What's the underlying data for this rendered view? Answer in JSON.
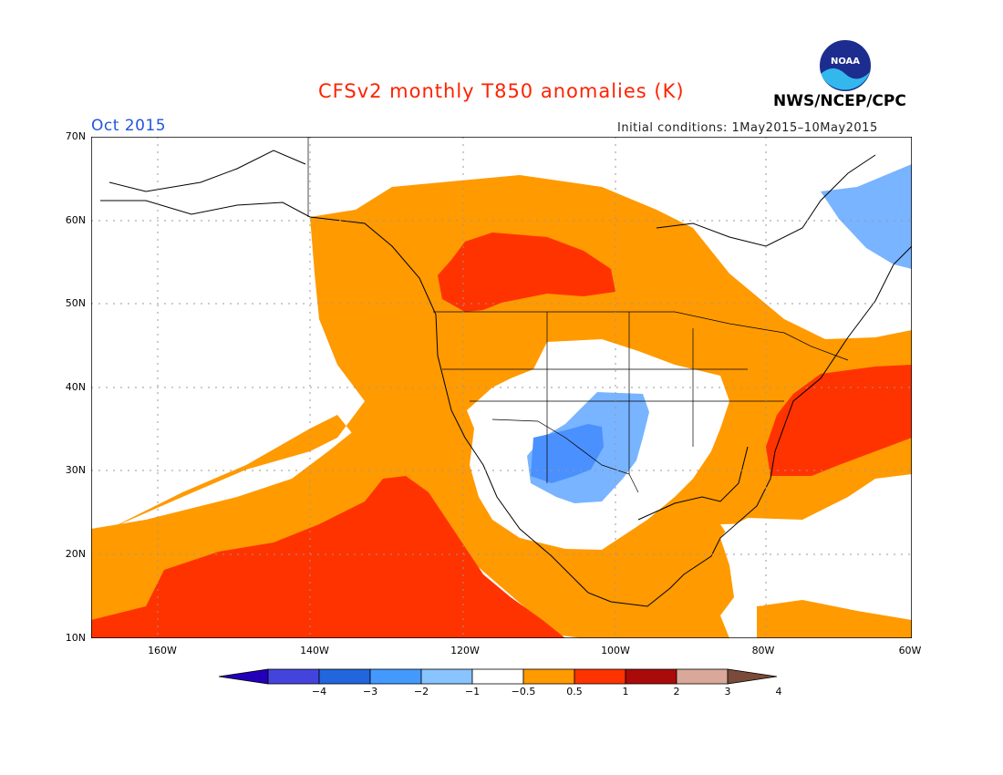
{
  "title": "CFSv2 monthly T850 anomalies (K)",
  "agency": "NWS/NCEP/CPC",
  "logo_text": "NOAA",
  "month": "Oct 2015",
  "initial_conditions": "Initial conditions: 1May2015–10May2015",
  "colors": {
    "title": "#ff2200",
    "month": "#2255dd",
    "white_band": "#ffffff",
    "warm_1": "#ff9a00",
    "warm_2": "#ff3300",
    "cool_1": "#78b4ff",
    "cool_2": "#4a90ff"
  },
  "map": {
    "lat_labels": [
      "70N",
      "60N",
      "50N",
      "40N",
      "30N",
      "20N",
      "10N"
    ],
    "lon_labels": [
      "160W",
      "140W",
      "120W",
      "100W",
      "80W",
      "60W"
    ]
  },
  "colorbar": {
    "labels": [
      "−4",
      "−3",
      "−2",
      "−1",
      "−0.5",
      "0.5",
      "1",
      "2",
      "3",
      "4"
    ],
    "colors": [
      "#2200bb",
      "#4444dd",
      "#2266dd",
      "#4499ff",
      "#88c4ff",
      "#ffffff",
      "#ff9a00",
      "#ff3300",
      "#aa0a0a",
      "#d9a898",
      "#7a4a3a"
    ]
  }
}
